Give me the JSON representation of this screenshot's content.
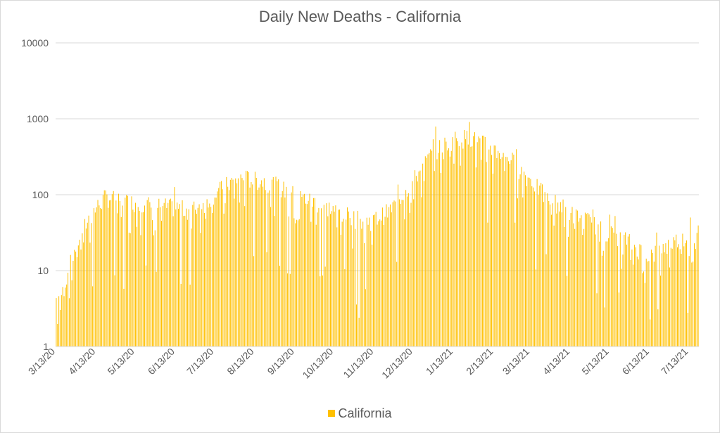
{
  "chart_data": {
    "type": "bar",
    "title": "Daily New Deaths - California",
    "xlabel": "",
    "ylabel": "",
    "y_scale": "log",
    "ylim": [
      1,
      10000
    ],
    "y_ticks": [
      "1",
      "10",
      "100",
      "1000",
      "10000"
    ],
    "x_tick_labels": [
      "3/13/20",
      "4/13/20",
      "5/13/20",
      "6/13/20",
      "7/13/20",
      "8/13/20",
      "9/13/20",
      "10/13/20",
      "11/13/20",
      "12/13/20",
      "1/13/21",
      "2/13/21",
      "3/13/21",
      "4/13/21",
      "5/13/21",
      "6/13/21",
      "7/13/21"
    ],
    "grid": "horizontal",
    "legend_position": "bottom",
    "series": [
      {
        "name": "California",
        "color": "#FFC000",
        "start_date": "3/13/20",
        "end_date": "7/20/21",
        "anchor_values": [
          [
            "3/13/20",
            4
          ],
          [
            "3/18/20",
            5
          ],
          [
            "3/25/20",
            14
          ],
          [
            "4/1/20",
            30
          ],
          [
            "4/8/20",
            50
          ],
          [
            "4/13/20",
            65
          ],
          [
            "4/20/20",
            90
          ],
          [
            "5/1/20",
            80
          ],
          [
            "5/13/20",
            75
          ],
          [
            "5/25/20",
            70
          ],
          [
            "6/13/20",
            65
          ],
          [
            "6/25/20",
            60
          ],
          [
            "7/5/20",
            75
          ],
          [
            "7/13/20",
            100
          ],
          [
            "7/25/20",
            140
          ],
          [
            "8/5/20",
            160
          ],
          [
            "8/13/20",
            150
          ],
          [
            "8/25/20",
            140
          ],
          [
            "9/5/20",
            110
          ],
          [
            "9/13/20",
            95
          ],
          [
            "9/25/20",
            80
          ],
          [
            "10/13/20",
            60
          ],
          [
            "10/25/20",
            50
          ],
          [
            "11/5/20",
            42
          ],
          [
            "11/13/20",
            45
          ],
          [
            "11/25/20",
            60
          ],
          [
            "12/5/20",
            100
          ],
          [
            "12/13/20",
            150
          ],
          [
            "12/25/20",
            300
          ],
          [
            "1/5/21",
            450
          ],
          [
            "1/13/21",
            520
          ],
          [
            "1/25/21",
            550
          ],
          [
            "2/5/21",
            450
          ],
          [
            "2/13/21",
            380
          ],
          [
            "2/25/21",
            300
          ],
          [
            "3/5/21",
            200
          ],
          [
            "3/13/21",
            150
          ],
          [
            "3/25/21",
            90
          ],
          [
            "4/5/21",
            70
          ],
          [
            "4/13/21",
            55
          ],
          [
            "4/25/21",
            45
          ],
          [
            "5/5/21",
            35
          ],
          [
            "5/13/21",
            30
          ],
          [
            "5/25/21",
            25
          ],
          [
            "6/5/21",
            18
          ],
          [
            "6/13/21",
            15
          ],
          [
            "6/25/21",
            20
          ],
          [
            "7/5/21",
            25
          ],
          [
            "7/13/21",
            28
          ],
          [
            "7/20/21",
            30
          ]
        ]
      }
    ]
  },
  "legend": {
    "label": "California",
    "color": "#FFC000"
  }
}
